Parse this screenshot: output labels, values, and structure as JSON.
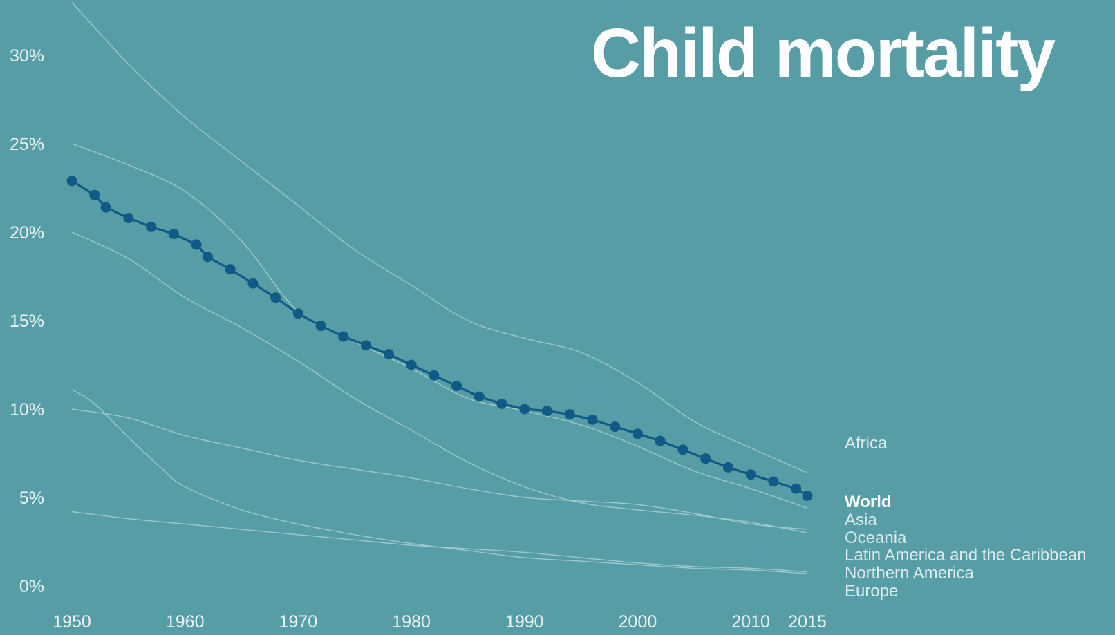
{
  "title": "Child mortality",
  "chart_data": {
    "type": "line",
    "title": "Child mortality",
    "xlabel": "",
    "ylabel": "",
    "xlim": [
      1950,
      2015
    ],
    "ylim": [
      0,
      33
    ],
    "x_ticks": [
      1950,
      1960,
      1970,
      1980,
      1990,
      2000,
      2010,
      2015
    ],
    "x_tick_labels": [
      "1950",
      "1960",
      "1970",
      "1980",
      "1990",
      "2000",
      "2010",
      "2015"
    ],
    "y_ticks": [
      0,
      5,
      10,
      15,
      20,
      25,
      30
    ],
    "y_tick_labels": [
      "0%",
      "5%",
      "10%",
      "15%",
      "20%",
      "25%",
      "30%"
    ],
    "grid": false,
    "legend": "direct labels at right end of lines",
    "colors": {
      "background": "#579da6",
      "world": "#0f5a86",
      "regions": "#a9d0d5",
      "text": "#ffffff"
    },
    "series": [
      {
        "name": "Africa",
        "highlight": false,
        "x": [
          1950,
          1955,
          1960,
          1965,
          1970,
          1975,
          1980,
          1985,
          1990,
          1995,
          2000,
          2005,
          2010,
          2015
        ],
        "values": [
          33.0,
          29.5,
          26.5,
          24.0,
          21.5,
          19.0,
          17.0,
          15.0,
          14.0,
          13.2,
          11.5,
          9.3,
          7.8,
          6.4
        ]
      },
      {
        "name": "World",
        "highlight": true,
        "x": [
          1950,
          1952,
          1953,
          1955,
          1957,
          1959,
          1961,
          1962,
          1964,
          1966,
          1968,
          1970,
          1972,
          1974,
          1976,
          1978,
          1980,
          1982,
          1984,
          1986,
          1988,
          1990,
          1992,
          1994,
          1996,
          1998,
          2000,
          2002,
          2004,
          2006,
          2008,
          2010,
          2012,
          2014,
          2015
        ],
        "values": [
          22.9,
          22.1,
          21.4,
          20.8,
          20.3,
          19.9,
          19.3,
          18.6,
          17.9,
          17.1,
          16.3,
          15.4,
          14.7,
          14.1,
          13.6,
          13.1,
          12.5,
          11.9,
          11.3,
          10.7,
          10.3,
          10.0,
          9.9,
          9.7,
          9.4,
          9.0,
          8.6,
          8.2,
          7.7,
          7.2,
          6.7,
          6.3,
          5.9,
          5.5,
          5.1
        ]
      },
      {
        "name": "Asia",
        "highlight": false,
        "x": [
          1950,
          1955,
          1960,
          1965,
          1970,
          1975,
          1980,
          1985,
          1990,
          1995,
          2000,
          2005,
          2010,
          2015
        ],
        "values": [
          25.0,
          23.8,
          22.3,
          19.5,
          15.5,
          13.8,
          12.3,
          10.6,
          9.9,
          9.1,
          7.9,
          6.5,
          5.5,
          4.4
        ]
      },
      {
        "name": "Oceania",
        "highlight": false,
        "x": [
          1950,
          1955,
          1960,
          1965,
          1970,
          1975,
          1980,
          1985,
          1990,
          1995,
          2000,
          2005,
          2010,
          2015
        ],
        "values": [
          10.0,
          9.5,
          8.5,
          7.8,
          7.1,
          6.6,
          6.1,
          5.5,
          5.0,
          4.8,
          4.6,
          4.1,
          3.5,
          3.2
        ]
      },
      {
        "name": "Latin America and the Caribbean",
        "highlight": false,
        "x": [
          1950,
          1955,
          1960,
          1965,
          1970,
          1975,
          1980,
          1985,
          1990,
          1995,
          2000,
          2005,
          2010,
          2015
        ],
        "values": [
          20.0,
          18.5,
          16.3,
          14.6,
          12.7,
          10.6,
          8.8,
          7.0,
          5.6,
          4.7,
          4.3,
          4.0,
          3.6,
          3.0
        ]
      },
      {
        "name": "Northern America",
        "highlight": false,
        "x": [
          1950,
          1955,
          1960,
          1965,
          1970,
          1975,
          1980,
          1985,
          1990,
          1995,
          2000,
          2005,
          2010,
          2015
        ],
        "values": [
          4.2,
          3.8,
          3.5,
          3.2,
          2.9,
          2.6,
          2.3,
          2.1,
          1.9,
          1.6,
          1.3,
          1.1,
          1.0,
          0.8
        ]
      },
      {
        "name": "Europe",
        "highlight": false,
        "x": [
          1950,
          1952,
          1955,
          1958,
          1960,
          1965,
          1970,
          1975,
          1980,
          1985,
          1990,
          1995,
          2000,
          2005,
          2010,
          2015
        ],
        "values": [
          11.1,
          10.3,
          8.4,
          6.6,
          5.6,
          4.3,
          3.5,
          2.9,
          2.4,
          2.0,
          1.6,
          1.4,
          1.2,
          1.0,
          0.9,
          0.7
        ]
      }
    ]
  }
}
